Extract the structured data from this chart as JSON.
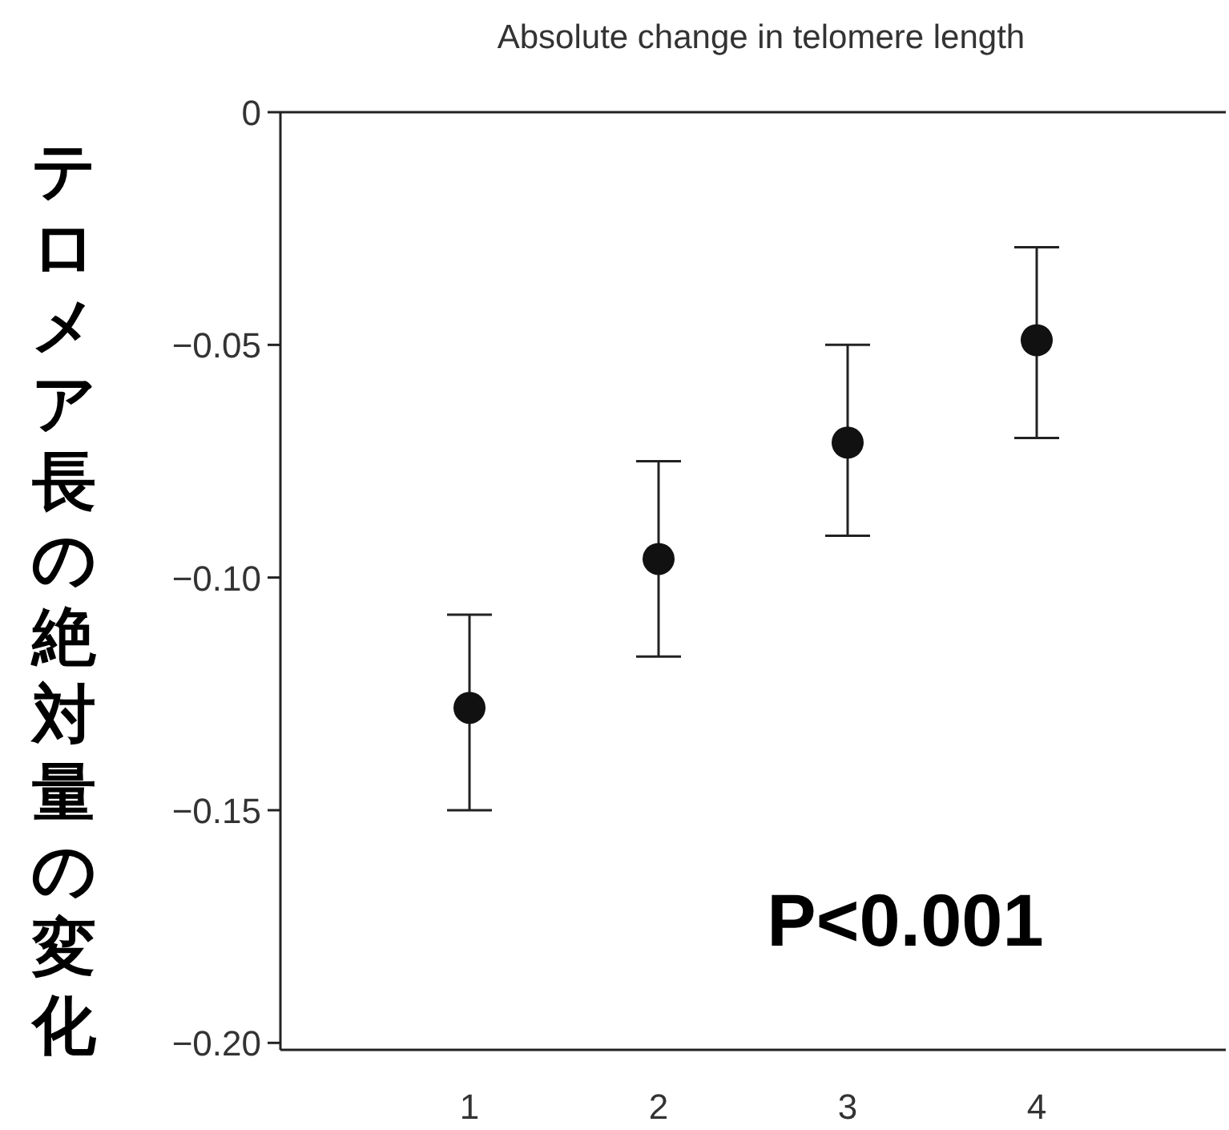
{
  "chart_data": {
    "type": "scatter",
    "title": "Absolute change in telomere length",
    "ylabel": "テロメア長の絶対量の変化",
    "categories": [
      "1",
      "2",
      "3",
      "4"
    ],
    "values": [
      -0.128,
      -0.096,
      -0.071,
      -0.049
    ],
    "errors": [
      [
        -0.15,
        -0.108
      ],
      [
        -0.117,
        -0.075
      ],
      [
        -0.091,
        -0.05
      ],
      [
        -0.07,
        -0.029
      ]
    ],
    "color": "#111111",
    "marker": "circle",
    "grid": false,
    "ylim": [
      -0.2015,
      0
    ],
    "yticks": [
      0,
      {
        "value": -0.05,
        "label": "−0.05"
      },
      {
        "value": -0.1,
        "label": "−0.10"
      },
      {
        "value": -0.15,
        "label": "−0.15"
      },
      {
        "value": -0.2,
        "label": "−0.20"
      }
    ],
    "annotations": [
      "P<0.001"
    ]
  }
}
